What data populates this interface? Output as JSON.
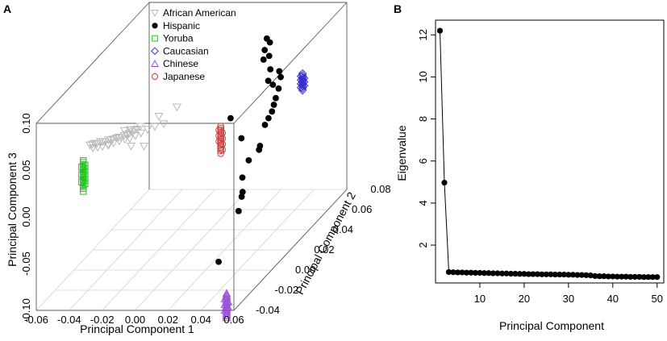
{
  "figure": {
    "panel_a_letter": "A",
    "panel_b_letter": "B"
  },
  "chart_data": [
    {
      "type": "scatter",
      "title": "",
      "projection": "3d",
      "xlabel": "Principal Component 1",
      "ylabel": "Principal Component 3",
      "zlabel": "Principal Component 2",
      "x_ticks": [
        "-0.06",
        "-0.04",
        "-0.02",
        "0.00",
        "0.02",
        "0.04",
        "0.06"
      ],
      "y_ticks": [
        "-0.10",
        "-0.05",
        "0.00",
        "0.05",
        "0.10"
      ],
      "z_ticks": [
        "-0.04",
        "-0.02",
        "0.00",
        "0.02",
        "0.04",
        "0.06",
        "0.08"
      ],
      "xlim": [
        -0.06,
        0.06
      ],
      "ylim": [
        -0.1,
        0.1
      ],
      "zlim": [
        -0.04,
        0.08
      ],
      "legend": [
        {
          "name": "African American",
          "marker": "triangle-down",
          "color": "#b8b8b8"
        },
        {
          "name": "Hispanic",
          "marker": "dot",
          "color": "#000000"
        },
        {
          "name": "Yoruba",
          "marker": "square",
          "color": "#22c41f"
        },
        {
          "name": "Caucasian",
          "marker": "diamond",
          "color": "#3a2fd0"
        },
        {
          "name": "Chinese",
          "marker": "triangle-up",
          "color": "#9a4fd6"
        },
        {
          "name": "Japanese",
          "marker": "circle",
          "color": "#d04040"
        }
      ],
      "series": [
        {
          "name": "African American",
          "points": [
            [
              -0.048,
              0.038,
              -0.004
            ],
            [
              -0.046,
              0.04,
              -0.005
            ],
            [
              -0.044,
              0.042,
              -0.006
            ],
            [
              -0.042,
              0.043,
              -0.007
            ],
            [
              -0.04,
              0.045,
              -0.007
            ],
            [
              -0.038,
              0.046,
              -0.008
            ],
            [
              -0.036,
              0.047,
              -0.009
            ],
            [
              -0.034,
              0.049,
              -0.009
            ],
            [
              -0.032,
              0.05,
              -0.01
            ],
            [
              -0.03,
              0.052,
              -0.011
            ],
            [
              -0.028,
              0.053,
              -0.011
            ],
            [
              -0.026,
              0.055,
              -0.012
            ],
            [
              -0.024,
              0.056,
              -0.013
            ],
            [
              -0.022,
              0.058,
              -0.013
            ],
            [
              -0.02,
              0.06,
              -0.014
            ],
            [
              -0.018,
              0.062,
              -0.015
            ],
            [
              -0.016,
              0.064,
              -0.015
            ],
            [
              -0.014,
              0.067,
              -0.016
            ],
            [
              -0.012,
              0.069,
              -0.017
            ],
            [
              -0.01,
              0.072,
              -0.017
            ],
            [
              -0.045,
              0.037,
              -0.006
            ],
            [
              -0.041,
              0.04,
              -0.008
            ],
            [
              -0.037,
              0.043,
              -0.01
            ],
            [
              -0.033,
              0.046,
              -0.011
            ],
            [
              -0.029,
              0.049,
              -0.012
            ],
            [
              -0.025,
              0.052,
              -0.013
            ],
            [
              -0.021,
              0.055,
              -0.014
            ],
            [
              -0.017,
              0.058,
              -0.016
            ],
            [
              -0.013,
              0.062,
              -0.017
            ],
            [
              -0.009,
              0.066,
              -0.018
            ],
            [
              -0.005,
              0.07,
              -0.018
            ],
            [
              0.0,
              0.074,
              -0.019
            ],
            [
              0.006,
              0.078,
              -0.02
            ],
            [
              -0.006,
              0.054,
              -0.02
            ],
            [
              0.003,
              0.086,
              -0.02
            ],
            [
              0.014,
              0.096,
              -0.02
            ],
            [
              -0.023,
              0.061,
              -0.011
            ],
            [
              -0.019,
              0.063,
              -0.012
            ],
            [
              -0.015,
              0.052,
              -0.018
            ],
            [
              -0.035,
              0.041,
              -0.007
            ]
          ]
        },
        {
          "name": "Hispanic",
          "points": [
            [
              0.016,
              0.07,
              0.072
            ],
            [
              0.019,
              0.068,
              0.07
            ],
            [
              0.017,
              0.062,
              0.068
            ],
            [
              0.022,
              0.06,
              0.064
            ],
            [
              0.025,
              0.05,
              0.06
            ],
            [
              0.031,
              0.049,
              0.059
            ],
            [
              0.033,
              0.045,
              0.057
            ],
            [
              0.03,
              0.04,
              0.054
            ],
            [
              0.034,
              0.037,
              0.053
            ],
            [
              0.034,
              0.03,
              0.05
            ],
            [
              0.034,
              0.025,
              0.048
            ],
            [
              0.034,
              0.02,
              0.046
            ],
            [
              0.033,
              0.015,
              0.044
            ],
            [
              0.032,
              0.01,
              0.042
            ],
            [
              0.01,
              0.015,
              0.044
            ],
            [
              0.02,
              0.0,
              0.038
            ],
            [
              0.033,
              -0.005,
              0.035
            ],
            [
              0.029,
              -0.015,
              0.03
            ],
            [
              0.028,
              -0.028,
              0.025
            ],
            [
              0.031,
              -0.038,
              0.02
            ],
            [
              0.031,
              -0.042,
              0.019
            ],
            [
              0.032,
              -0.052,
              0.014
            ],
            [
              0.029,
              -0.089,
              -0.002
            ],
            [
              0.033,
              -0.008,
              0.034
            ],
            [
              0.018,
              0.055,
              0.065
            ],
            [
              0.026,
              0.042,
              0.056
            ]
          ]
        },
        {
          "name": "Yoruba",
          "points": [
            [
              -0.048,
              0.029,
              -0.011
            ],
            [
              -0.048,
              0.027,
              -0.011
            ],
            [
              -0.048,
              0.025,
              -0.011
            ],
            [
              -0.048,
              0.023,
              -0.011
            ],
            [
              -0.048,
              0.021,
              -0.011
            ],
            [
              -0.048,
              0.019,
              -0.011
            ],
            [
              -0.048,
              0.017,
              -0.011
            ],
            [
              -0.048,
              0.015,
              -0.011
            ],
            [
              -0.048,
              0.013,
              -0.011
            ],
            [
              -0.048,
              0.011,
              -0.011
            ],
            [
              -0.048,
              0.009,
              -0.011
            ],
            [
              -0.048,
              0.007,
              -0.011
            ],
            [
              -0.048,
              0.005,
              -0.011
            ],
            [
              -0.048,
              0.003,
              -0.011
            ],
            [
              -0.048,
              0.001,
              -0.011
            ],
            [
              -0.048,
              -0.001,
              -0.011
            ],
            [
              -0.048,
              -0.004,
              -0.011
            ],
            [
              -0.047,
              0.024,
              -0.011
            ],
            [
              -0.047,
              0.02,
              -0.011
            ],
            [
              -0.047,
              0.016,
              -0.011
            ],
            [
              -0.047,
              0.012,
              -0.011
            ],
            [
              -0.047,
              0.008,
              -0.011
            ],
            [
              -0.047,
              0.004,
              -0.011
            ],
            [
              -0.049,
              0.022,
              -0.011
            ],
            [
              -0.049,
              0.014,
              -0.011
            ],
            [
              -0.049,
              0.006,
              -0.011
            ]
          ]
        },
        {
          "name": "Caucasian",
          "points": [
            [
              0.048,
              0.052,
              0.054
            ],
            [
              0.048,
              0.05,
              0.054
            ],
            [
              0.048,
              0.048,
              0.054
            ],
            [
              0.048,
              0.046,
              0.054
            ],
            [
              0.048,
              0.044,
              0.054
            ],
            [
              0.048,
              0.042,
              0.054
            ],
            [
              0.048,
              0.04,
              0.054
            ],
            [
              0.048,
              0.038,
              0.054
            ],
            [
              0.048,
              0.036,
              0.054
            ],
            [
              0.048,
              0.034,
              0.054
            ],
            [
              0.047,
              0.049,
              0.054
            ],
            [
              0.047,
              0.045,
              0.054
            ],
            [
              0.047,
              0.041,
              0.054
            ],
            [
              0.047,
              0.037,
              0.054
            ],
            [
              0.049,
              0.047,
              0.054
            ],
            [
              0.049,
              0.043,
              0.054
            ],
            [
              0.049,
              0.039,
              0.054
            ]
          ]
        },
        {
          "name": "Chinese",
          "points": [
            [
              0.055,
              -0.083,
              -0.039
            ],
            [
              0.055,
              -0.085,
              -0.039
            ],
            [
              0.055,
              -0.087,
              -0.039
            ],
            [
              0.055,
              -0.089,
              -0.039
            ],
            [
              0.055,
              -0.091,
              -0.039
            ],
            [
              0.055,
              -0.093,
              -0.039
            ],
            [
              0.055,
              -0.095,
              -0.039
            ],
            [
              0.055,
              -0.097,
              -0.039
            ],
            [
              0.055,
              -0.099,
              -0.039
            ],
            [
              0.055,
              -0.101,
              -0.039
            ],
            [
              0.055,
              -0.103,
              -0.039
            ],
            [
              0.055,
              -0.105,
              -0.039
            ],
            [
              0.055,
              -0.107,
              -0.039
            ],
            [
              0.055,
              -0.109,
              -0.039
            ],
            [
              0.054,
              -0.089,
              -0.039
            ],
            [
              0.054,
              -0.095,
              -0.039
            ],
            [
              0.054,
              -0.101,
              -0.039
            ],
            [
              0.056,
              -0.092,
              -0.039
            ],
            [
              0.056,
              -0.098,
              -0.039
            ]
          ]
        },
        {
          "name": "Japanese",
          "points": [
            [
              0.024,
              0.044,
              0.009
            ],
            [
              0.024,
              0.042,
              0.009
            ],
            [
              0.024,
              0.04,
              0.009
            ],
            [
              0.024,
              0.038,
              0.009
            ],
            [
              0.024,
              0.036,
              0.009
            ],
            [
              0.024,
              0.034,
              0.009
            ],
            [
              0.024,
              0.032,
              0.009
            ],
            [
              0.024,
              0.03,
              0.009
            ],
            [
              0.024,
              0.028,
              0.009
            ],
            [
              0.024,
              0.026,
              0.009
            ],
            [
              0.024,
              0.024,
              0.009
            ],
            [
              0.024,
              0.022,
              0.009
            ],
            [
              0.024,
              0.02,
              0.009
            ],
            [
              0.024,
              0.018,
              0.009
            ],
            [
              0.024,
              0.015,
              0.009
            ],
            [
              0.023,
              0.04,
              0.009
            ],
            [
              0.023,
              0.034,
              0.009
            ],
            [
              0.023,
              0.028,
              0.009
            ],
            [
              0.025,
              0.037,
              0.009
            ],
            [
              0.025,
              0.031,
              0.009
            ],
            [
              0.025,
              0.025,
              0.009
            ],
            [
              0.025,
              0.019,
              0.009
            ]
          ]
        }
      ]
    },
    {
      "type": "line",
      "title": "",
      "xlabel": "Principal Component",
      "ylabel": "Eigenvalue",
      "x_ticks": [
        10,
        20,
        30,
        40,
        50
      ],
      "y_ticks": [
        2,
        4,
        6,
        8,
        10,
        12
      ],
      "xlim": [
        0,
        51.5
      ],
      "ylim": [
        0.2,
        12.7
      ],
      "x": [
        1,
        2,
        3,
        4,
        5,
        6,
        7,
        8,
        9,
        10,
        11,
        12,
        13,
        14,
        15,
        16,
        17,
        18,
        19,
        20,
        21,
        22,
        23,
        24,
        25,
        26,
        27,
        28,
        29,
        30,
        31,
        32,
        33,
        34,
        35,
        36,
        37,
        38,
        39,
        40,
        41,
        42,
        43,
        44,
        45,
        46,
        47,
        48,
        49,
        50
      ],
      "values": [
        12.2,
        4.97,
        0.72,
        0.71,
        0.7,
        0.7,
        0.69,
        0.69,
        0.68,
        0.68,
        0.67,
        0.67,
        0.66,
        0.66,
        0.65,
        0.65,
        0.64,
        0.64,
        0.63,
        0.63,
        0.62,
        0.62,
        0.62,
        0.61,
        0.61,
        0.61,
        0.6,
        0.6,
        0.6,
        0.59,
        0.59,
        0.58,
        0.58,
        0.57,
        0.56,
        0.53,
        0.52,
        0.52,
        0.51,
        0.51,
        0.5,
        0.5,
        0.5,
        0.49,
        0.49,
        0.49,
        0.48,
        0.48,
        0.48,
        0.48
      ],
      "color": "#000000"
    }
  ]
}
